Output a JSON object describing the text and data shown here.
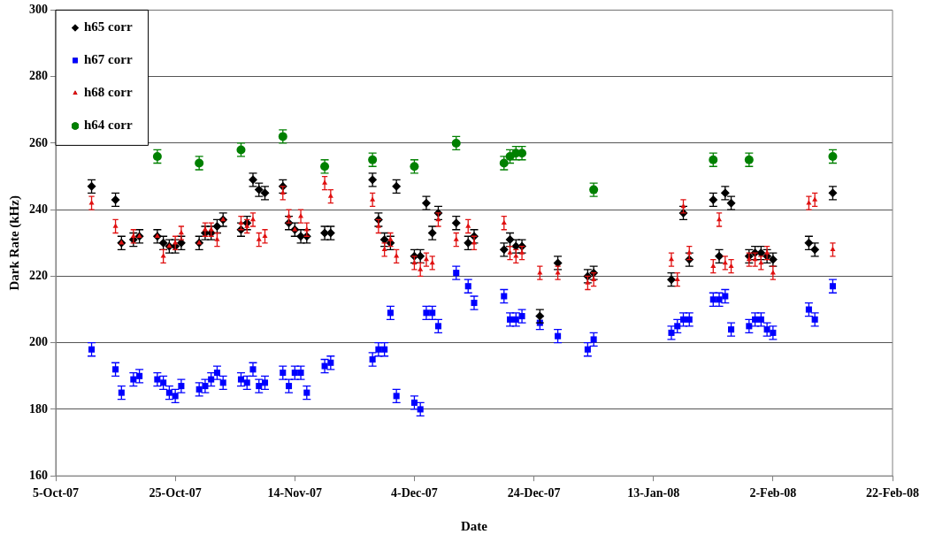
{
  "chart_data": {
    "type": "scatter",
    "xlabel": "Date",
    "ylabel": "Dark Rate (kHz)",
    "xlim": [
      "2007-10-05",
      "2008-02-22"
    ],
    "xticks": [
      {
        "value": "2007-10-05",
        "label": "5-Oct-07"
      },
      {
        "value": "2007-10-25",
        "label": "25-Oct-07"
      },
      {
        "value": "2007-11-14",
        "label": "14-Nov-07"
      },
      {
        "value": "2007-12-04",
        "label": "4-Dec-07"
      },
      {
        "value": "2007-12-24",
        "label": "24-Dec-07"
      },
      {
        "value": "2008-01-13",
        "label": "13-Jan-08"
      },
      {
        "value": "2008-02-02",
        "label": "2-Feb-08"
      },
      {
        "value": "2008-02-22",
        "label": "22-Feb-08"
      }
    ],
    "ylim": [
      160,
      300
    ],
    "yticks": [
      160,
      180,
      200,
      220,
      240,
      260,
      280,
      300
    ],
    "grid": "y",
    "legend": "top left",
    "series": [
      {
        "name": "h65 corr",
        "color": "#000000",
        "marker": "diamond",
        "x": [
          "2007-10-11",
          "2007-10-15",
          "2007-10-16",
          "2007-10-18",
          "2007-10-19",
          "2007-10-22",
          "2007-10-23",
          "2007-10-24",
          "2007-10-25",
          "2007-10-26",
          "2007-10-29",
          "2007-10-30",
          "2007-10-31",
          "2007-11-01",
          "2007-11-02",
          "2007-11-05",
          "2007-11-06",
          "2007-11-07",
          "2007-11-08",
          "2007-11-09",
          "2007-11-12",
          "2007-11-13",
          "2007-11-14",
          "2007-11-15",
          "2007-11-16",
          "2007-11-19",
          "2007-11-20",
          "2007-11-27",
          "2007-11-28",
          "2007-11-29",
          "2007-11-30",
          "2007-12-01",
          "2007-12-04",
          "2007-12-05",
          "2007-12-06",
          "2007-12-07",
          "2007-12-08",
          "2007-12-11",
          "2007-12-13",
          "2007-12-14",
          "2007-12-19",
          "2007-12-20",
          "2007-12-21",
          "2007-12-22",
          "2007-12-25",
          "2007-12-28",
          "2008-01-02",
          "2008-01-03",
          "2008-01-16",
          "2008-01-18",
          "2008-01-19",
          "2008-01-23",
          "2008-01-24",
          "2008-01-25",
          "2008-01-26",
          "2008-01-29",
          "2008-01-30",
          "2008-01-31",
          "2008-02-01",
          "2008-02-02",
          "2008-02-08",
          "2008-02-09",
          "2008-02-12"
        ],
        "values": [
          247,
          243,
          230,
          231,
          232,
          232,
          230,
          229,
          229,
          230,
          230,
          233,
          233,
          235,
          237,
          234,
          236,
          249,
          246,
          245,
          247,
          236,
          234,
          232,
          232,
          233,
          233,
          249,
          237,
          231,
          230,
          247,
          226,
          226,
          242,
          233,
          239,
          236,
          230,
          232,
          228,
          231,
          229,
          229,
          208,
          224,
          220,
          221,
          219,
          239,
          225,
          243,
          226,
          245,
          242,
          226,
          227,
          227,
          226,
          225,
          230,
          228,
          245
        ],
        "errors": [
          2,
          2,
          2,
          2,
          2,
          2,
          2,
          2,
          2,
          2,
          2,
          2,
          2,
          2,
          2,
          2,
          2,
          2,
          2,
          2,
          2,
          2,
          2,
          2,
          2,
          2,
          2,
          2,
          2,
          2,
          2,
          2,
          2,
          2,
          2,
          2,
          2,
          2,
          2,
          2,
          2,
          2,
          2,
          2,
          2,
          2,
          2,
          2,
          2,
          2,
          2,
          2,
          2,
          2,
          2,
          2,
          2,
          2,
          2,
          2,
          2,
          2,
          2
        ]
      },
      {
        "name": "h67 corr",
        "color": "#0000ff",
        "marker": "square",
        "x": [
          "2007-10-11",
          "2007-10-15",
          "2007-10-16",
          "2007-10-18",
          "2007-10-19",
          "2007-10-22",
          "2007-10-23",
          "2007-10-24",
          "2007-10-25",
          "2007-10-26",
          "2007-10-29",
          "2007-10-30",
          "2007-10-31",
          "2007-11-01",
          "2007-11-02",
          "2007-11-05",
          "2007-11-06",
          "2007-11-07",
          "2007-11-08",
          "2007-11-09",
          "2007-11-12",
          "2007-11-13",
          "2007-11-14",
          "2007-11-15",
          "2007-11-16",
          "2007-11-19",
          "2007-11-20",
          "2007-11-27",
          "2007-11-28",
          "2007-11-29",
          "2007-11-30",
          "2007-12-01",
          "2007-12-04",
          "2007-12-05",
          "2007-12-06",
          "2007-12-07",
          "2007-12-08",
          "2007-12-11",
          "2007-12-13",
          "2007-12-14",
          "2007-12-19",
          "2007-12-20",
          "2007-12-21",
          "2007-12-22",
          "2007-12-25",
          "2007-12-28",
          "2008-01-02",
          "2008-01-03",
          "2008-01-16",
          "2008-01-17",
          "2008-01-18",
          "2008-01-19",
          "2008-01-23",
          "2008-01-24",
          "2008-01-25",
          "2008-01-26",
          "2008-01-29",
          "2008-01-30",
          "2008-01-31",
          "2008-02-01",
          "2008-02-02",
          "2008-02-08",
          "2008-02-09",
          "2008-02-12"
        ],
        "values": [
          198,
          192,
          185,
          189,
          190,
          189,
          188,
          185,
          184,
          187,
          186,
          187,
          189,
          191,
          188,
          189,
          188,
          192,
          187,
          188,
          191,
          187,
          191,
          191,
          185,
          193,
          194,
          195,
          198,
          198,
          209,
          184,
          182,
          180,
          209,
          209,
          205,
          221,
          217,
          212,
          214,
          207,
          207,
          208,
          206,
          202,
          198,
          201,
          203,
          205,
          207,
          207,
          213,
          213,
          214,
          204,
          205,
          207,
          207,
          204,
          203,
          210,
          207,
          217
        ],
        "errors": [
          2,
          2,
          2,
          2,
          2,
          2,
          2,
          2,
          2,
          2,
          2,
          2,
          2,
          2,
          2,
          2,
          2,
          2,
          2,
          2,
          2,
          2,
          2,
          2,
          2,
          2,
          2,
          2,
          2,
          2,
          2,
          2,
          2,
          2,
          2,
          2,
          2,
          2,
          2,
          2,
          2,
          2,
          2,
          2,
          2,
          2,
          2,
          2,
          2,
          2,
          2,
          2,
          2,
          2,
          2,
          2,
          2,
          2,
          2,
          2,
          2,
          2,
          2,
          2
        ]
      },
      {
        "name": "h68 corr",
        "color": "#e01010",
        "marker": "triangle",
        "x": [
          "2007-10-11",
          "2007-10-15",
          "2007-10-16",
          "2007-10-18",
          "2007-10-19",
          "2007-10-22",
          "2007-10-23",
          "2007-10-24",
          "2007-10-25",
          "2007-10-26",
          "2007-10-29",
          "2007-10-30",
          "2007-10-31",
          "2007-11-01",
          "2007-11-02",
          "2007-11-05",
          "2007-11-06",
          "2007-11-07",
          "2007-11-08",
          "2007-11-09",
          "2007-11-12",
          "2007-11-13",
          "2007-11-14",
          "2007-11-15",
          "2007-11-16",
          "2007-11-19",
          "2007-11-20",
          "2007-11-27",
          "2007-11-28",
          "2007-11-29",
          "2007-11-30",
          "2007-12-01",
          "2007-12-04",
          "2007-12-05",
          "2007-12-06",
          "2007-12-07",
          "2007-12-08",
          "2007-12-11",
          "2007-12-13",
          "2007-12-14",
          "2007-12-19",
          "2007-12-20",
          "2007-12-21",
          "2007-12-22",
          "2007-12-25",
          "2007-12-28",
          "2008-01-02",
          "2008-01-03",
          "2008-01-16",
          "2008-01-17",
          "2008-01-18",
          "2008-01-19",
          "2008-01-23",
          "2008-01-24",
          "2008-01-25",
          "2008-01-26",
          "2008-01-29",
          "2008-01-30",
          "2008-01-31",
          "2008-02-01",
          "2008-02-02",
          "2008-02-08",
          "2008-02-09",
          "2008-02-12"
        ],
        "values": [
          242,
          235,
          230,
          232,
          232,
          232,
          226,
          229,
          230,
          233,
          230,
          234,
          234,
          231,
          237,
          236,
          235,
          237,
          231,
          232,
          245,
          238,
          234,
          238,
          234,
          248,
          244,
          243,
          235,
          228,
          231,
          226,
          224,
          222,
          225,
          224,
          237,
          231,
          235,
          230,
          236,
          227,
          226,
          227,
          221,
          221,
          218,
          219,
          225,
          219,
          241,
          227,
          223,
          237,
          224,
          223,
          225,
          225,
          224,
          227,
          221,
          242,
          243,
          228
        ],
        "errors": [
          2,
          2,
          null,
          2,
          null,
          null,
          2,
          null,
          2,
          2,
          null,
          2,
          2,
          2,
          null,
          2,
          2,
          2,
          2,
          2,
          2,
          2,
          null,
          2,
          2,
          2,
          2,
          2,
          2,
          2,
          2,
          2,
          2,
          2,
          2,
          2,
          2,
          2,
          2,
          2,
          2,
          2,
          2,
          2,
          2,
          2,
          2,
          2,
          2,
          2,
          2,
          2,
          2,
          2,
          2,
          2,
          2,
          2,
          2,
          2,
          2,
          2,
          2,
          2
        ]
      },
      {
        "name": "h64 corr",
        "color": "#008000",
        "marker": "circle",
        "x": [
          "2007-10-22",
          "2007-10-29",
          "2007-11-05",
          "2007-11-12",
          "2007-11-19",
          "2007-11-27",
          "2007-12-04",
          "2007-12-11",
          "2007-12-19",
          "2007-12-20",
          "2007-12-21",
          "2007-12-22",
          "2008-01-03",
          "2008-01-23",
          "2008-01-29",
          "2008-02-12"
        ],
        "values": [
          256,
          254,
          258,
          262,
          253,
          255,
          253,
          260,
          254,
          256,
          257,
          257,
          246,
          255,
          255,
          256
        ],
        "errors": [
          2,
          2,
          2,
          2,
          2,
          2,
          2,
          2,
          2,
          2,
          2,
          2,
          2,
          2,
          2,
          2
        ]
      }
    ]
  }
}
